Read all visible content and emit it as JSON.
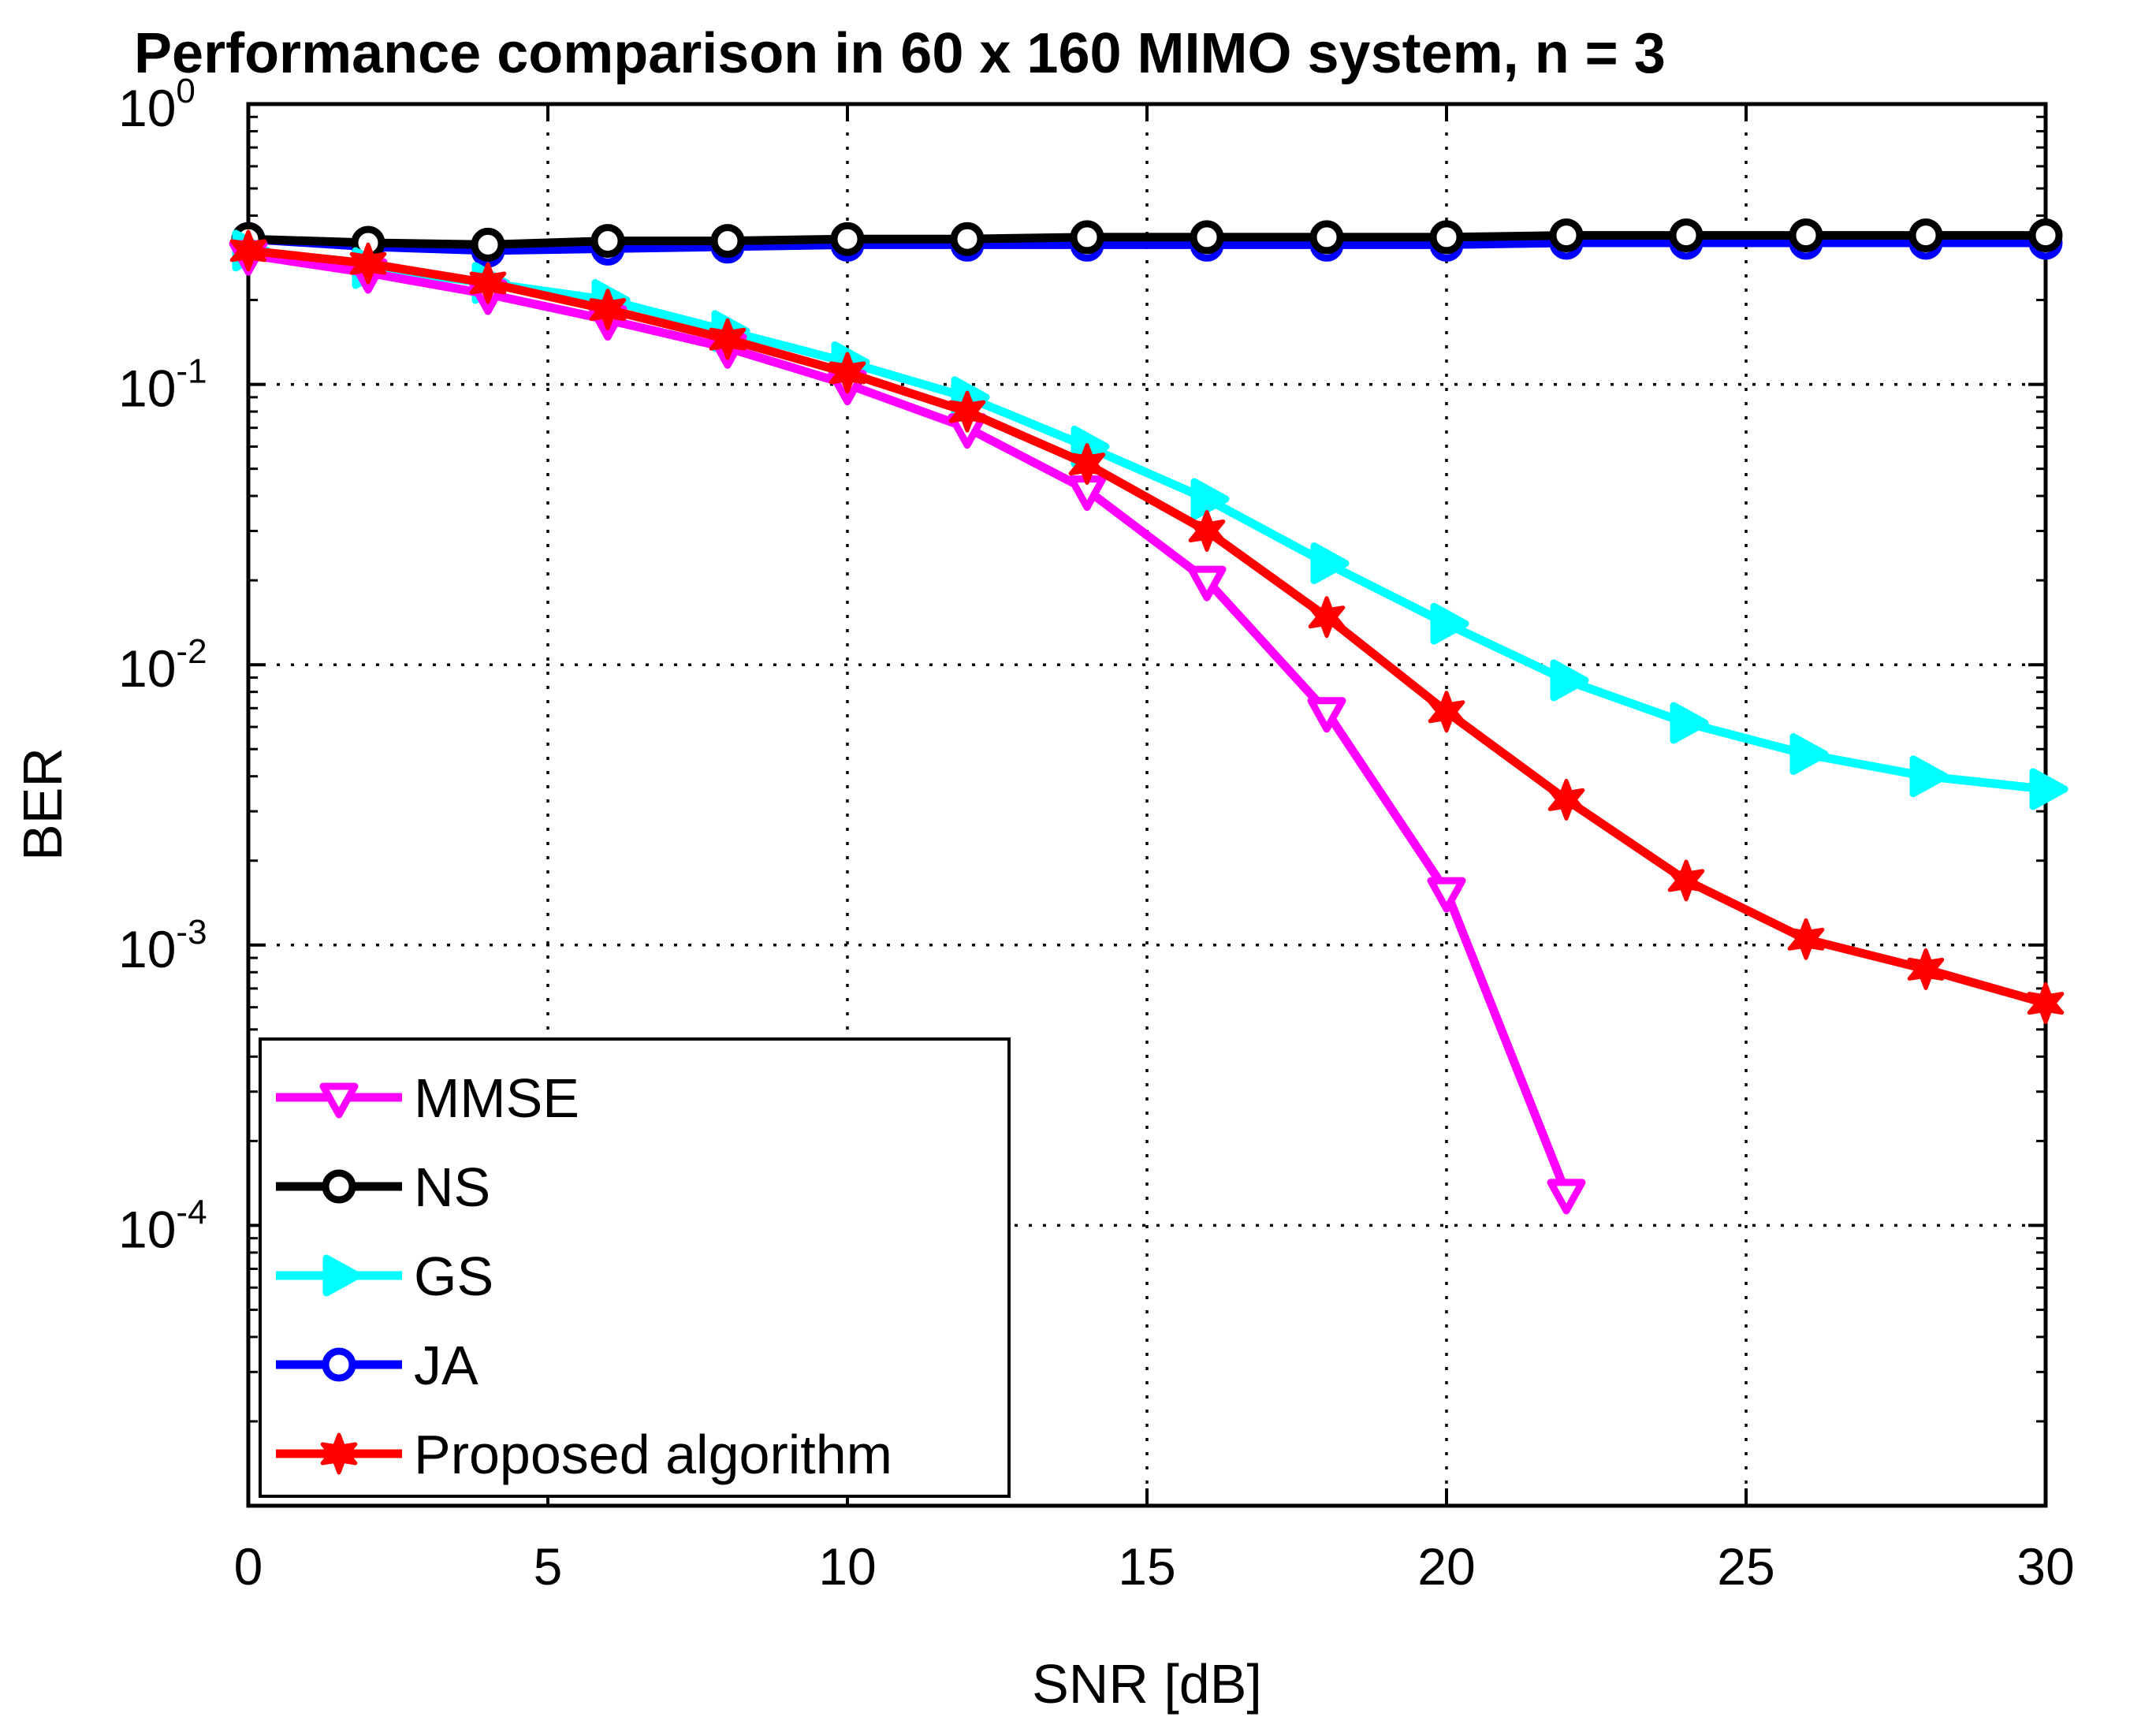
{
  "chart_data": {
    "type": "line",
    "title": "Performance comparison in 60 x 160 MIMO system, n = 3",
    "xlabel": "SNR [dB]",
    "ylabel": "BER",
    "yscale": "log",
    "xlim": [
      0,
      30
    ],
    "ylim": [
      1e-05,
      1
    ],
    "grid": true,
    "legend_position": "bottom-left",
    "x_ticks": [
      "0",
      "5",
      "10",
      "15",
      "20",
      "25",
      "30"
    ],
    "y_ticks": [
      {
        "base": "10",
        "exp": "0"
      },
      {
        "base": "10",
        "exp": "-1"
      },
      {
        "base": "10",
        "exp": "-2"
      },
      {
        "base": "10",
        "exp": "-3"
      },
      {
        "base": "10",
        "exp": "-4"
      }
    ],
    "x": [
      0,
      2,
      4,
      6,
      8,
      10,
      12,
      14,
      16,
      18,
      20,
      22,
      24,
      26,
      28,
      30
    ],
    "series": [
      {
        "name": "MMSE",
        "color": "#ff00ff",
        "marker": "triangle-down",
        "values": [
          0.29,
          0.25,
          0.21,
          0.17,
          0.135,
          0.1,
          0.07,
          0.042,
          0.02,
          0.0068,
          0.00155,
          0.00013,
          null,
          null,
          null,
          null
        ]
      },
      {
        "name": "NS",
        "color": "#000000",
        "marker": "circle",
        "values": [
          0.33,
          0.32,
          0.315,
          0.325,
          0.325,
          0.33,
          0.33,
          0.335,
          0.335,
          0.335,
          0.335,
          0.34,
          0.34,
          0.34,
          0.34,
          0.34
        ]
      },
      {
        "name": "GS",
        "color": "#00ffff",
        "marker": "triangle-right",
        "values": [
          0.3,
          0.26,
          0.23,
          0.2,
          0.155,
          0.12,
          0.09,
          0.06,
          0.039,
          0.023,
          0.014,
          0.0088,
          0.0062,
          0.0048,
          0.004,
          0.0036
        ]
      },
      {
        "name": "JA",
        "color": "#0000ff",
        "marker": "circle",
        "values": [
          0.33,
          0.31,
          0.3,
          0.305,
          0.31,
          0.315,
          0.315,
          0.315,
          0.315,
          0.315,
          0.315,
          0.32,
          0.32,
          0.32,
          0.32,
          0.32
        ]
      },
      {
        "name": "Proposed algorithm",
        "color": "#ff0000",
        "marker": "star",
        "values": [
          0.3,
          0.27,
          0.23,
          0.185,
          0.145,
          0.11,
          0.08,
          0.052,
          0.03,
          0.0148,
          0.0068,
          0.0033,
          0.0017,
          0.00105,
          0.00082,
          0.00062
        ]
      }
    ]
  }
}
